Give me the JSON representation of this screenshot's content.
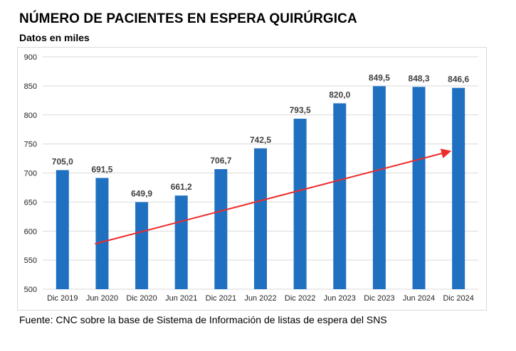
{
  "title": "NÚMERO DE PACIENTES EN ESPERA QUIRÚRGICA",
  "subtitle": "Datos en miles",
  "source": "Fuente: CNC sobre la base de Sistema de Información de listas de espera del SNS",
  "colors": {
    "bar": "#1f70c1",
    "trend": "#ee2a2a",
    "grid": "#d9d9d9"
  },
  "chart_data": {
    "type": "bar",
    "title": "NÚMERO DE PACIENTES EN ESPERA QUIRÚRGICA",
    "ylabel": "Datos en miles",
    "xlabel": "",
    "categories": [
      "Dic 2019",
      "Jun 2020",
      "Dic 2020",
      "Jun 2021",
      "Dic 2021",
      "Jun 2022",
      "Dic 2022",
      "Jun 2023",
      "Dic 2023",
      "Jun 2024",
      "Dic 2024"
    ],
    "values": [
      705.0,
      691.5,
      649.9,
      661.2,
      706.7,
      742.5,
      793.5,
      820.0,
      849.5,
      848.3,
      846.6
    ],
    "value_labels": [
      "705,0",
      "691,5",
      "649,9",
      "661,2",
      "706,7",
      "742,5",
      "793,5",
      "820,0",
      "849,5",
      "848,3",
      "846,6"
    ],
    "ylim": [
      500,
      900
    ],
    "yticks": [
      500,
      550,
      600,
      650,
      700,
      750,
      800,
      850,
      900
    ],
    "grid": true,
    "annotations": [
      {
        "type": "trend-arrow",
        "from": {
          "x": "Jun 2020",
          "y": 578
        },
        "to": {
          "x": "Dic 2024",
          "y": 738
        }
      }
    ]
  }
}
